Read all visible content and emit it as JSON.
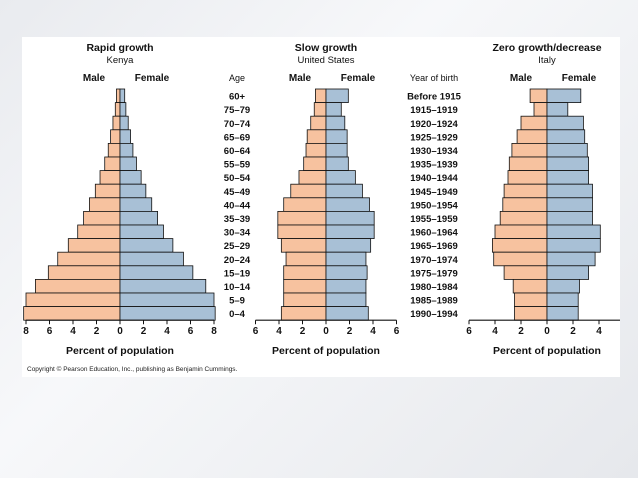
{
  "colors": {
    "male": "#f7c29f",
    "female": "#a8c0d6",
    "outline": "#111111"
  },
  "copyright": "Copyright © Pearson Education, Inc., publishing as Benjamin Cummings.",
  "headers": {
    "age": "Age",
    "year_of_birth": "Year of birth"
  },
  "age_groups": [
    "60+",
    "75–79",
    "70–74",
    "65–69",
    "60–64",
    "55–59",
    "50–54",
    "45–49",
    "40–44",
    "35–39",
    "30–34",
    "25–29",
    "20–24",
    "15–19",
    "10–14",
    "5–9",
    "0–4"
  ],
  "birth_years": [
    "Before 1915",
    "1915–1919",
    "1920–1924",
    "1925–1929",
    "1930–1934",
    "1935–1939",
    "1940–1944",
    "1945–1949",
    "1950–1954",
    "1955–1959",
    "1960–1964",
    "1965–1969",
    "1970–1974",
    "1975–1979",
    "1980–1984",
    "1985–1989",
    "1990–1994"
  ],
  "chart_data": [
    {
      "type": "bar",
      "title": "Rapid growth",
      "subtitle": "Kenya",
      "xlabel": "Percent of population",
      "series": [
        {
          "name": "Male",
          "values": [
            0.3,
            0.4,
            0.6,
            0.8,
            1.0,
            1.3,
            1.7,
            2.1,
            2.6,
            3.1,
            3.6,
            4.4,
            5.3,
            6.1,
            7.2,
            8.0,
            8.2
          ]
        },
        {
          "name": "Female",
          "values": [
            0.4,
            0.5,
            0.7,
            0.9,
            1.1,
            1.4,
            1.8,
            2.2,
            2.7,
            3.2,
            3.7,
            4.5,
            5.4,
            6.2,
            7.3,
            8.0,
            8.1
          ]
        }
      ],
      "xlim": [
        -8,
        8
      ],
      "ticks": [
        "8",
        "6",
        "4",
        "2",
        "0",
        "2",
        "4",
        "6",
        "8"
      ]
    },
    {
      "type": "bar",
      "title": "Slow growth",
      "subtitle": "United States",
      "xlabel": "Percent of population",
      "series": [
        {
          "name": "Male",
          "values": [
            0.9,
            1.0,
            1.3,
            1.6,
            1.7,
            1.9,
            2.3,
            3.0,
            3.6,
            4.1,
            4.1,
            3.8,
            3.4,
            3.6,
            3.6,
            3.6,
            3.8
          ]
        },
        {
          "name": "Female",
          "values": [
            1.9,
            1.3,
            1.6,
            1.8,
            1.8,
            1.9,
            2.5,
            3.1,
            3.7,
            4.1,
            4.1,
            3.8,
            3.4,
            3.5,
            3.4,
            3.4,
            3.6
          ]
        }
      ],
      "xlim": [
        -6,
        6
      ],
      "ticks": [
        "6",
        "4",
        "2",
        "0",
        "2",
        "4",
        "6"
      ]
    },
    {
      "type": "bar",
      "title": "Zero growth/decrease",
      "subtitle": "Italy",
      "xlabel": "Percent of population",
      "series": [
        {
          "name": "Male",
          "values": [
            1.3,
            1.0,
            2.0,
            2.3,
            2.7,
            2.9,
            3.0,
            3.3,
            3.4,
            3.6,
            4.0,
            4.2,
            4.1,
            3.3,
            2.6,
            2.5,
            2.5
          ]
        },
        {
          "name": "Female",
          "values": [
            2.6,
            1.6,
            2.8,
            2.9,
            3.1,
            3.2,
            3.2,
            3.5,
            3.5,
            3.5,
            4.1,
            4.1,
            3.7,
            3.2,
            2.5,
            2.4,
            2.4
          ]
        }
      ],
      "xlim": [
        -6,
        6
      ],
      "ticks": [
        "6",
        "4",
        "2",
        "0",
        "2",
        "4",
        "6"
      ]
    }
  ]
}
